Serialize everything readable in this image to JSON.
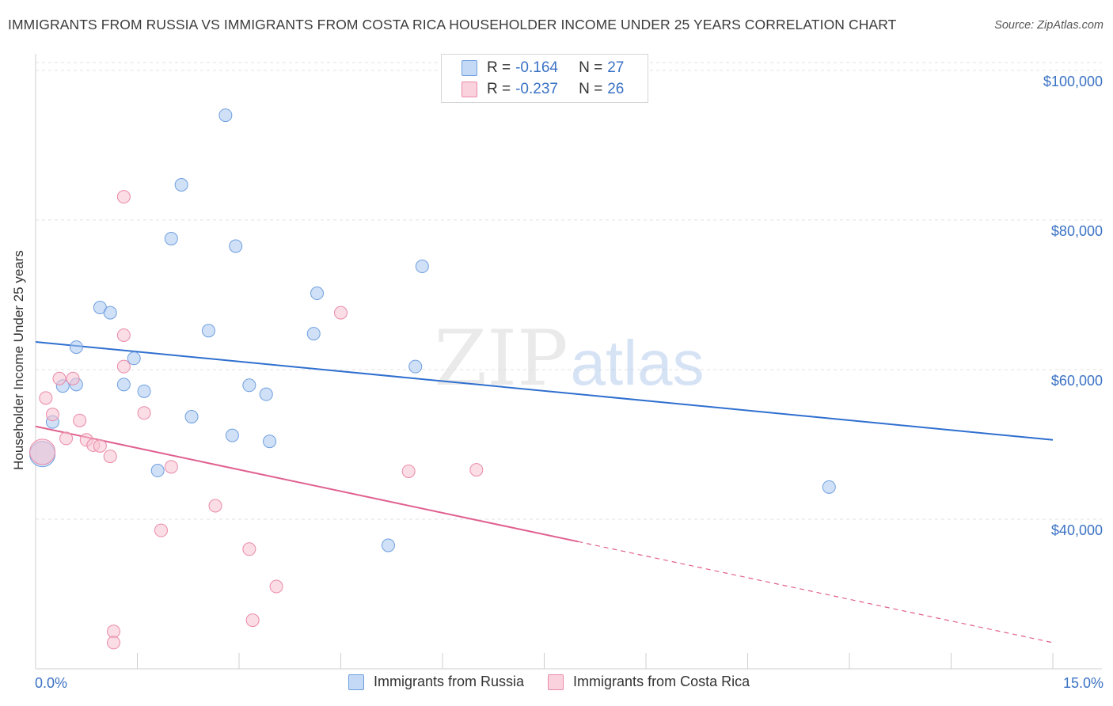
{
  "title": "IMMIGRANTS FROM RUSSIA VS IMMIGRANTS FROM COSTA RICA HOUSEHOLDER INCOME UNDER 25 YEARS CORRELATION CHART",
  "source": "Source: ZipAtlas.com",
  "watermark": {
    "zip": "ZIP",
    "atlas": "atlas"
  },
  "legend": {
    "rows": [
      {
        "r_label": "R = ",
        "r_value": "-0.164",
        "n_label": "N = ",
        "n_value": "27",
        "color": "#a9c8f0",
        "border": "#6f9fe0"
      },
      {
        "r_label": "R = ",
        "r_value": "-0.237",
        "n_label": "N = ",
        "n_value": "26",
        "color": "#f7c1d0",
        "border": "#e98aa8"
      }
    ]
  },
  "chart_data": {
    "type": "scatter",
    "title": "IMMIGRANTS FROM RUSSIA VS IMMIGRANTS FROM COSTA RICA HOUSEHOLDER INCOME UNDER 25 YEARS CORRELATION CHART",
    "xlabel": "",
    "ylabel": "Householder Income Under 25 years",
    "xlim": [
      0,
      15
    ],
    "ylim": [
      20000,
      102000
    ],
    "x_tick_labels": {
      "min": "0.0%",
      "max": "15.0%"
    },
    "y_ticks": [
      {
        "value": 40000,
        "label": "$40,000"
      },
      {
        "value": 60000,
        "label": "$60,000"
      },
      {
        "value": 80000,
        "label": "$80,000"
      },
      {
        "value": 100000,
        "label": "$100,000"
      }
    ],
    "series": [
      {
        "name": "Immigrants from Russia",
        "color": "#a9c8f0",
        "stroke": "#6f9fe0",
        "trend": {
          "x0": 0.0,
          "y0": 63700,
          "x1": 15.0,
          "y1": 50600,
          "color": "#2f6fcf"
        },
        "points": [
          {
            "x": 0.1,
            "y": 48700,
            "big": true
          },
          {
            "x": 0.25,
            "y": 53000
          },
          {
            "x": 0.4,
            "y": 57800
          },
          {
            "x": 0.6,
            "y": 58000
          },
          {
            "x": 0.6,
            "y": 63000
          },
          {
            "x": 0.95,
            "y": 68300
          },
          {
            "x": 1.1,
            "y": 67600
          },
          {
            "x": 1.3,
            "y": 58000
          },
          {
            "x": 1.45,
            "y": 61500
          },
          {
            "x": 1.6,
            "y": 57100
          },
          {
            "x": 1.8,
            "y": 46500
          },
          {
            "x": 2.0,
            "y": 77500
          },
          {
            "x": 2.15,
            "y": 84700
          },
          {
            "x": 2.3,
            "y": 53700
          },
          {
            "x": 2.55,
            "y": 65200
          },
          {
            "x": 2.8,
            "y": 94000
          },
          {
            "x": 2.9,
            "y": 51200
          },
          {
            "x": 2.95,
            "y": 76500
          },
          {
            "x": 3.15,
            "y": 57900
          },
          {
            "x": 3.4,
            "y": 56700
          },
          {
            "x": 3.45,
            "y": 50400
          },
          {
            "x": 4.1,
            "y": 64800
          },
          {
            "x": 4.15,
            "y": 70200
          },
          {
            "x": 5.2,
            "y": 36500
          },
          {
            "x": 5.6,
            "y": 60400
          },
          {
            "x": 5.7,
            "y": 73800
          },
          {
            "x": 11.7,
            "y": 44300
          }
        ]
      },
      {
        "name": "Immigrants from Costa Rica",
        "color": "#f7c1d0",
        "stroke": "#e98aa8",
        "trend": {
          "x0": 0.0,
          "y0": 52400,
          "x1": 8.0,
          "y1": 37000,
          "dash_x1": 15.0,
          "dash_y1": 23500,
          "color": "#e0608f"
        },
        "points": [
          {
            "x": 0.1,
            "y": 49000,
            "big": true
          },
          {
            "x": 0.15,
            "y": 56200
          },
          {
            "x": 0.25,
            "y": 54000
          },
          {
            "x": 0.35,
            "y": 58800
          },
          {
            "x": 0.45,
            "y": 50800
          },
          {
            "x": 0.55,
            "y": 58800
          },
          {
            "x": 0.65,
            "y": 53200
          },
          {
            "x": 0.75,
            "y": 50600
          },
          {
            "x": 0.85,
            "y": 49900
          },
          {
            "x": 0.95,
            "y": 49800
          },
          {
            "x": 1.1,
            "y": 48400
          },
          {
            "x": 1.15,
            "y": 25000
          },
          {
            "x": 1.15,
            "y": 23500
          },
          {
            "x": 1.3,
            "y": 60400
          },
          {
            "x": 1.3,
            "y": 64600
          },
          {
            "x": 1.3,
            "y": 83100
          },
          {
            "x": 1.6,
            "y": 54200
          },
          {
            "x": 1.85,
            "y": 38500
          },
          {
            "x": 2.0,
            "y": 47000
          },
          {
            "x": 2.65,
            "y": 41800
          },
          {
            "x": 3.15,
            "y": 36000
          },
          {
            "x": 3.2,
            "y": 26500
          },
          {
            "x": 3.55,
            "y": 31000
          },
          {
            "x": 4.5,
            "y": 67600
          },
          {
            "x": 5.5,
            "y": 46400
          },
          {
            "x": 6.5,
            "y": 46600
          }
        ]
      }
    ],
    "legend_position": "top-center",
    "grid": true
  },
  "bottom_legend": [
    {
      "label": "Immigrants from Russia",
      "color": "#a9c8f0",
      "border": "#6f9fe0"
    },
    {
      "label": "Immigrants from Costa Rica",
      "color": "#f7c1d0",
      "border": "#e98aa8"
    }
  ]
}
